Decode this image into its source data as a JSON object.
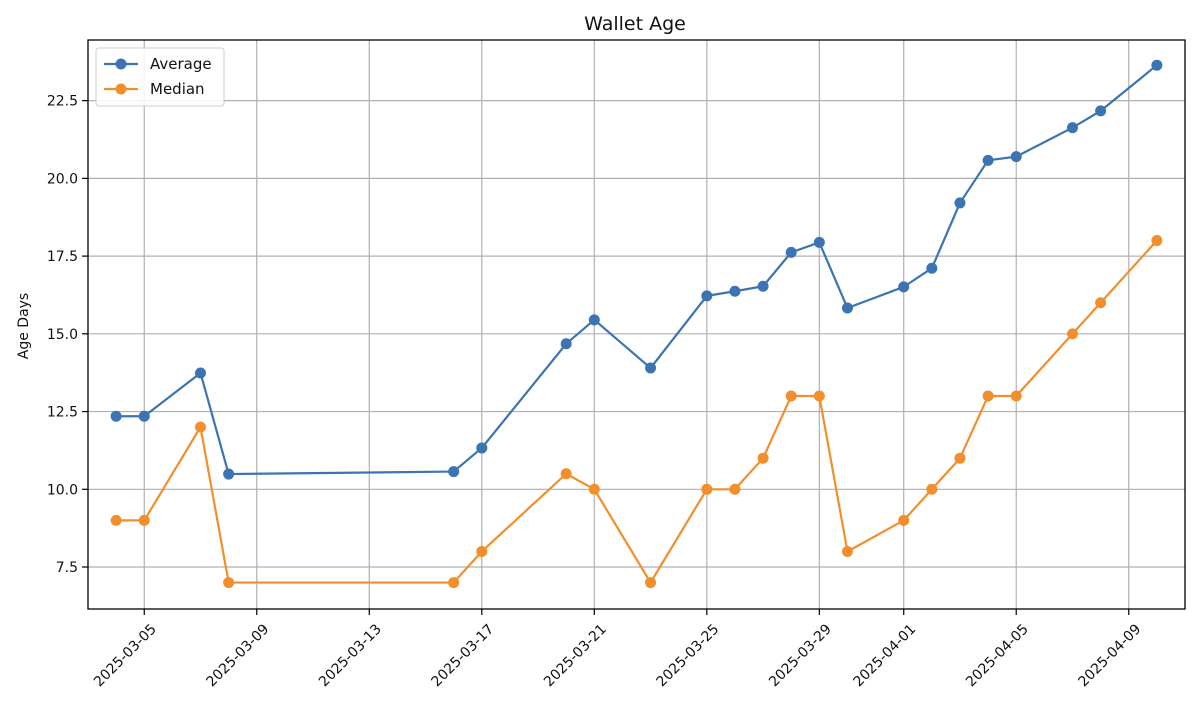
{
  "chart_data": {
    "type": "line",
    "title": "Wallet Age",
    "xlabel": "",
    "ylabel": "Age Days",
    "x": [
      "2025-03-04",
      "2025-03-05",
      "2025-03-07",
      "2025-03-08",
      "2025-03-16",
      "2025-03-17",
      "2025-03-20",
      "2025-03-21",
      "2025-03-23",
      "2025-03-25",
      "2025-03-26",
      "2025-03-27",
      "2025-03-28",
      "2025-03-29",
      "2025-03-30",
      "2025-04-01",
      "2025-04-02",
      "2025-04-03",
      "2025-04-04",
      "2025-04-05",
      "2025-04-07",
      "2025-04-08",
      "2025-04-10"
    ],
    "series": [
      {
        "name": "Average",
        "color": "#3b73b3",
        "values": [
          12.35,
          12.35,
          13.74,
          10.49,
          10.57,
          11.33,
          14.68,
          15.45,
          13.9,
          16.22,
          16.37,
          16.53,
          17.62,
          17.94,
          15.83,
          16.51,
          17.11,
          19.21,
          20.58,
          20.7,
          21.63,
          22.17,
          23.64
        ]
      },
      {
        "name": "Median",
        "color": "#f28e2b",
        "values": [
          9,
          9,
          12,
          7,
          7,
          8,
          10.5,
          10,
          7,
          10,
          10,
          11,
          13,
          13,
          8,
          9,
          10,
          11,
          13,
          13,
          15,
          16,
          18
        ]
      }
    ],
    "x_ticks": [
      "2025-03-05",
      "2025-03-09",
      "2025-03-13",
      "2025-03-17",
      "2025-03-21",
      "2025-03-25",
      "2025-03-29",
      "2025-04-01",
      "2025-04-05",
      "2025-04-09"
    ],
    "y_ticks": [
      "7.5",
      "10.0",
      "12.5",
      "15.0",
      "17.5",
      "20.0",
      "22.5"
    ],
    "xlim": [
      "2025-03-03",
      "2025-04-11"
    ],
    "ylim": [
      6.15,
      24.45
    ],
    "grid": true,
    "legend_position": "top-left",
    "marker": "circle"
  }
}
